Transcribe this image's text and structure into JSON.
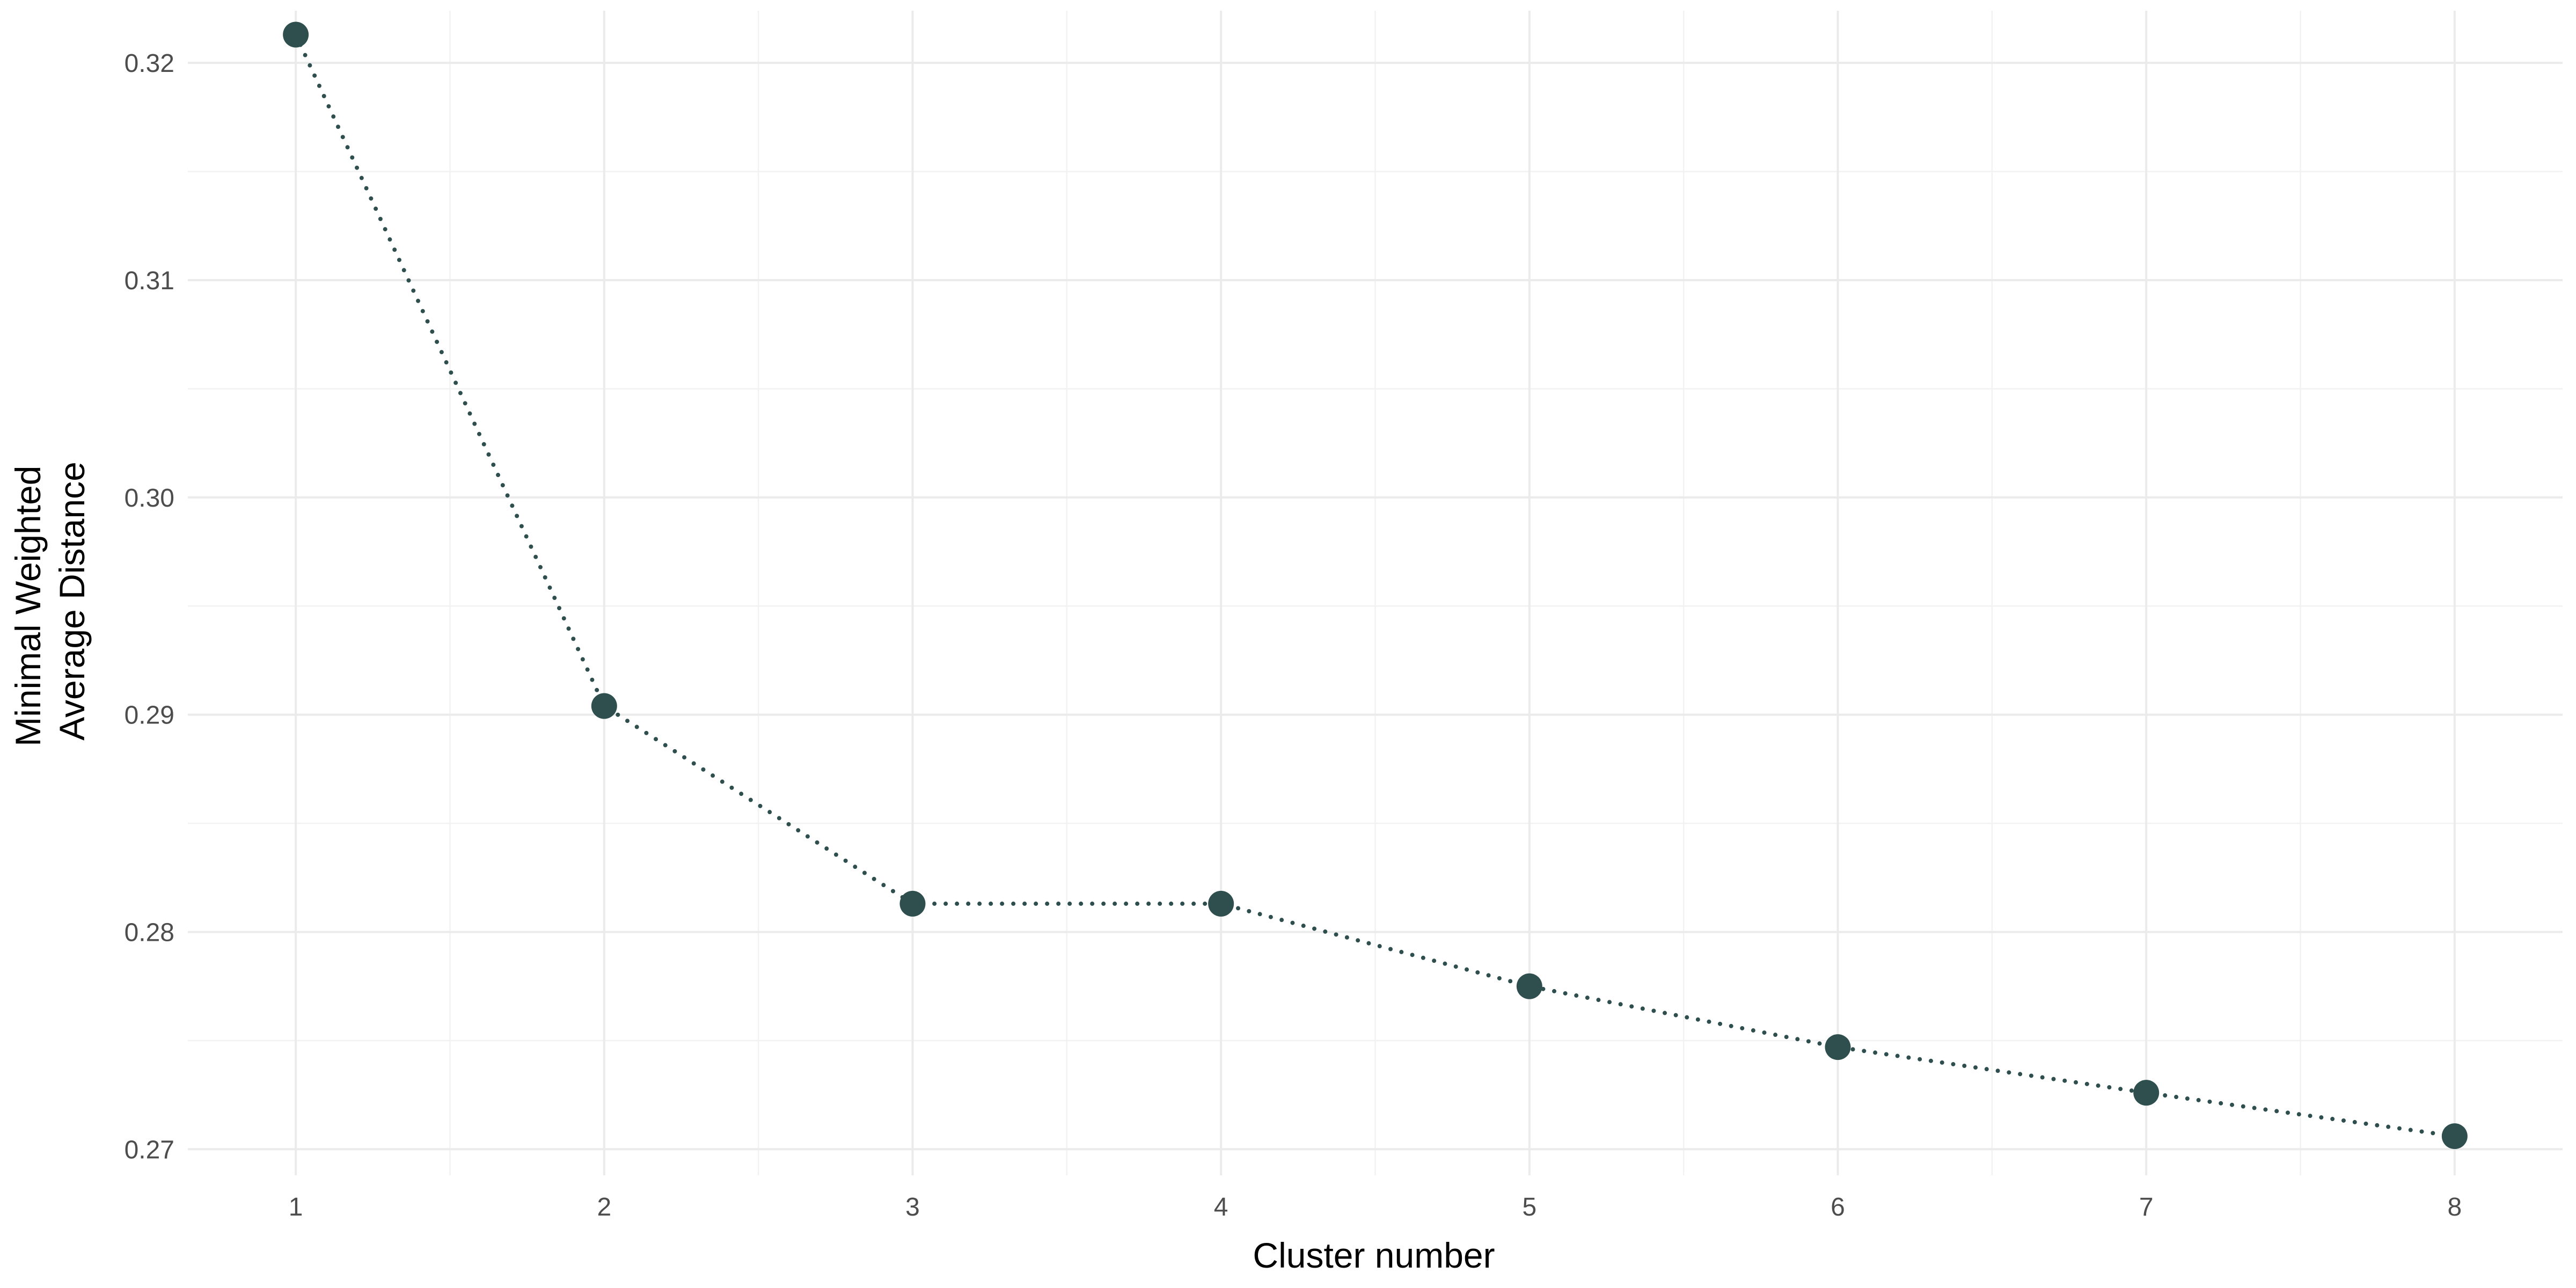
{
  "chart_data": {
    "type": "line",
    "xlabel": "Cluster number",
    "ylabel_lines": [
      "Minimal Weighted",
      "Average Distance"
    ],
    "x": [
      1,
      2,
      3,
      4,
      5,
      6,
      7,
      8
    ],
    "values": [
      0.3213,
      0.2904,
      0.2813,
      0.2813,
      0.2775,
      0.2747,
      0.2726,
      0.2706
    ],
    "x_ticks": [
      1,
      2,
      3,
      4,
      5,
      6,
      7,
      8
    ],
    "y_ticks": [
      "0.27",
      "0.28",
      "0.29",
      "0.30",
      "0.31",
      "0.32"
    ],
    "xlim": [
      0.65,
      8.35
    ],
    "ylim": [
      0.2688,
      0.3224
    ],
    "line_style": "dotted",
    "marker": "filled-circle",
    "grid": true,
    "legend": "none",
    "colors": {
      "series": "#2f4f4f",
      "grid_major": "#ebebeb",
      "grid_minor": "#f2f2f2"
    }
  }
}
